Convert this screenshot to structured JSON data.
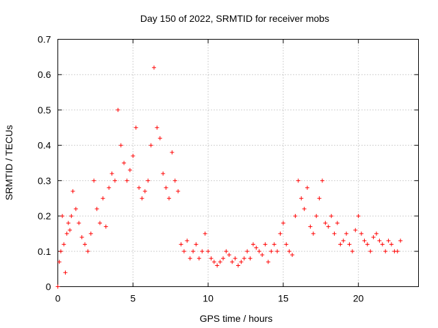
{
  "chart_data": {
    "type": "scatter",
    "title": "Day 150 of 2022, SRMTID for receiver mobs",
    "xlabel": "GPS time / hours",
    "ylabel": "SRMTID / TECUs",
    "xlim": [
      0,
      24
    ],
    "ylim": [
      0,
      0.7
    ],
    "x_ticks": [
      0,
      5,
      10,
      15,
      20
    ],
    "x_tick_labels": [
      "0",
      "5",
      "10",
      "15",
      "20"
    ],
    "y_ticks": [
      0,
      0.1,
      0.2,
      0.3,
      0.4,
      0.5,
      0.6,
      0.7
    ],
    "y_tick_labels": [
      "0",
      "0.1",
      "0.2",
      "0.3",
      "0.4",
      "0.5",
      "0.6",
      "0.7"
    ],
    "grid": true,
    "marker": "+",
    "color": "#ff0000",
    "series": [
      {
        "name": "SRMTID",
        "x": [
          0.0,
          0.1,
          0.2,
          0.3,
          0.4,
          0.5,
          0.6,
          0.7,
          0.8,
          0.9,
          1.0,
          1.2,
          1.4,
          1.6,
          1.8,
          2.0,
          2.2,
          2.4,
          2.6,
          2.8,
          3.0,
          3.2,
          3.4,
          3.6,
          3.8,
          4.0,
          4.2,
          4.4,
          4.6,
          4.8,
          5.0,
          5.2,
          5.4,
          5.6,
          5.8,
          6.0,
          6.2,
          6.4,
          6.6,
          6.8,
          7.0,
          7.2,
          7.4,
          7.6,
          7.8,
          8.0,
          8.2,
          8.4,
          8.6,
          8.8,
          9.0,
          9.2,
          9.4,
          9.6,
          9.8,
          10.0,
          10.2,
          10.4,
          10.6,
          10.8,
          11.0,
          11.2,
          11.4,
          11.6,
          11.8,
          12.0,
          12.2,
          12.4,
          12.6,
          12.8,
          13.0,
          13.2,
          13.4,
          13.6,
          13.8,
          14.0,
          14.2,
          14.4,
          14.6,
          14.8,
          15.0,
          15.2,
          15.4,
          15.6,
          15.8,
          16.0,
          16.2,
          16.4,
          16.6,
          16.8,
          17.0,
          17.2,
          17.4,
          17.6,
          17.8,
          18.0,
          18.2,
          18.4,
          18.6,
          18.8,
          19.0,
          19.2,
          19.4,
          19.6,
          19.8,
          20.0,
          20.2,
          20.4,
          20.6,
          20.8,
          21.0,
          21.2,
          21.4,
          21.6,
          21.8,
          22.0,
          22.2,
          22.4,
          22.6,
          22.8
        ],
        "y": [
          0.0,
          0.07,
          0.1,
          0.2,
          0.12,
          0.04,
          0.15,
          0.18,
          0.16,
          0.2,
          0.27,
          0.22,
          0.18,
          0.14,
          0.12,
          0.1,
          0.15,
          0.3,
          0.22,
          0.18,
          0.25,
          0.17,
          0.28,
          0.32,
          0.3,
          0.5,
          0.4,
          0.35,
          0.3,
          0.33,
          0.37,
          0.45,
          0.28,
          0.25,
          0.27,
          0.3,
          0.4,
          0.62,
          0.45,
          0.42,
          0.32,
          0.28,
          0.25,
          0.38,
          0.3,
          0.27,
          0.12,
          0.1,
          0.13,
          0.08,
          0.1,
          0.12,
          0.08,
          0.1,
          0.15,
          0.1,
          0.08,
          0.07,
          0.06,
          0.07,
          0.08,
          0.1,
          0.09,
          0.07,
          0.08,
          0.06,
          0.07,
          0.08,
          0.1,
          0.08,
          0.12,
          0.11,
          0.1,
          0.09,
          0.12,
          0.07,
          0.1,
          0.12,
          0.1,
          0.15,
          0.18,
          0.12,
          0.1,
          0.09,
          0.2,
          0.3,
          0.25,
          0.22,
          0.28,
          0.17,
          0.15,
          0.2,
          0.25,
          0.3,
          0.18,
          0.17,
          0.2,
          0.15,
          0.18,
          0.12,
          0.13,
          0.15,
          0.12,
          0.1,
          0.16,
          0.2,
          0.15,
          0.13,
          0.12,
          0.1,
          0.14,
          0.15,
          0.13,
          0.12,
          0.1,
          0.13,
          0.12,
          0.1,
          0.1,
          0.13
        ]
      }
    ]
  }
}
